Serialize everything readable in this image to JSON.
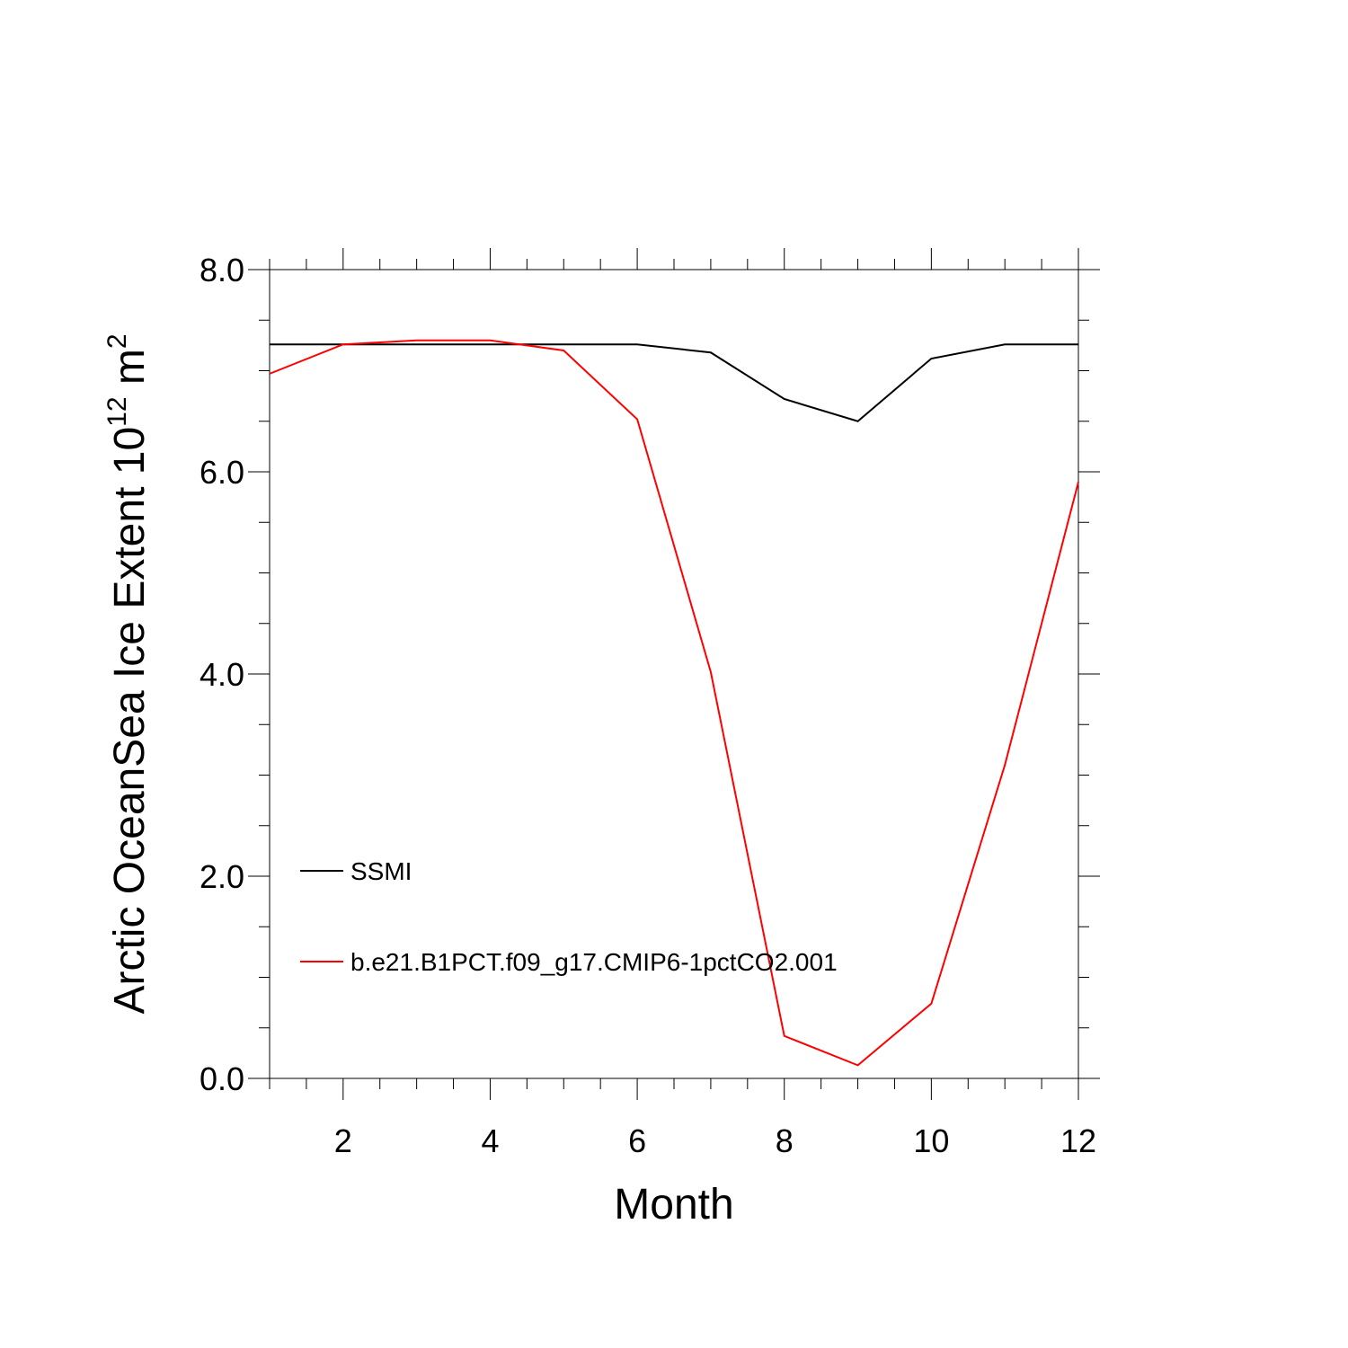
{
  "chart_data": {
    "type": "line",
    "xlabel": "Month",
    "ylabel": "Arctic OceanSea Ice Extent 10",
    "ylabel_exp": "12",
    "ylabel_unit": " m",
    "ylabel_unit_exp": "2",
    "xlim": [
      1,
      12
    ],
    "ylim": [
      0,
      8
    ],
    "x_ticks": [
      2,
      4,
      6,
      8,
      10,
      12
    ],
    "x_tick_labels": [
      "2",
      "4",
      "6",
      "8",
      "10",
      "12"
    ],
    "y_ticks": [
      0,
      2,
      4,
      6,
      8
    ],
    "y_tick_labels": [
      "0.0",
      "2.0",
      "4.0",
      "6.0",
      "8.0"
    ],
    "grid": false,
    "legend_position": "lower-left",
    "x": [
      1,
      2,
      3,
      4,
      5,
      6,
      7,
      8,
      9,
      10,
      11,
      12
    ],
    "series": [
      {
        "name": "SSMI",
        "color": "#000000",
        "values": [
          7.26,
          7.26,
          7.26,
          7.26,
          7.26,
          7.26,
          7.18,
          6.72,
          6.5,
          7.12,
          7.26,
          7.26
        ]
      },
      {
        "name": "b.e21.B1PCT.f09_g17.CMIP6-1pctCO2.001",
        "color": "#ff0000",
        "values": [
          6.97,
          7.26,
          7.3,
          7.3,
          7.2,
          6.52,
          4.02,
          0.42,
          0.13,
          0.74,
          3.1,
          5.9
        ]
      }
    ]
  }
}
